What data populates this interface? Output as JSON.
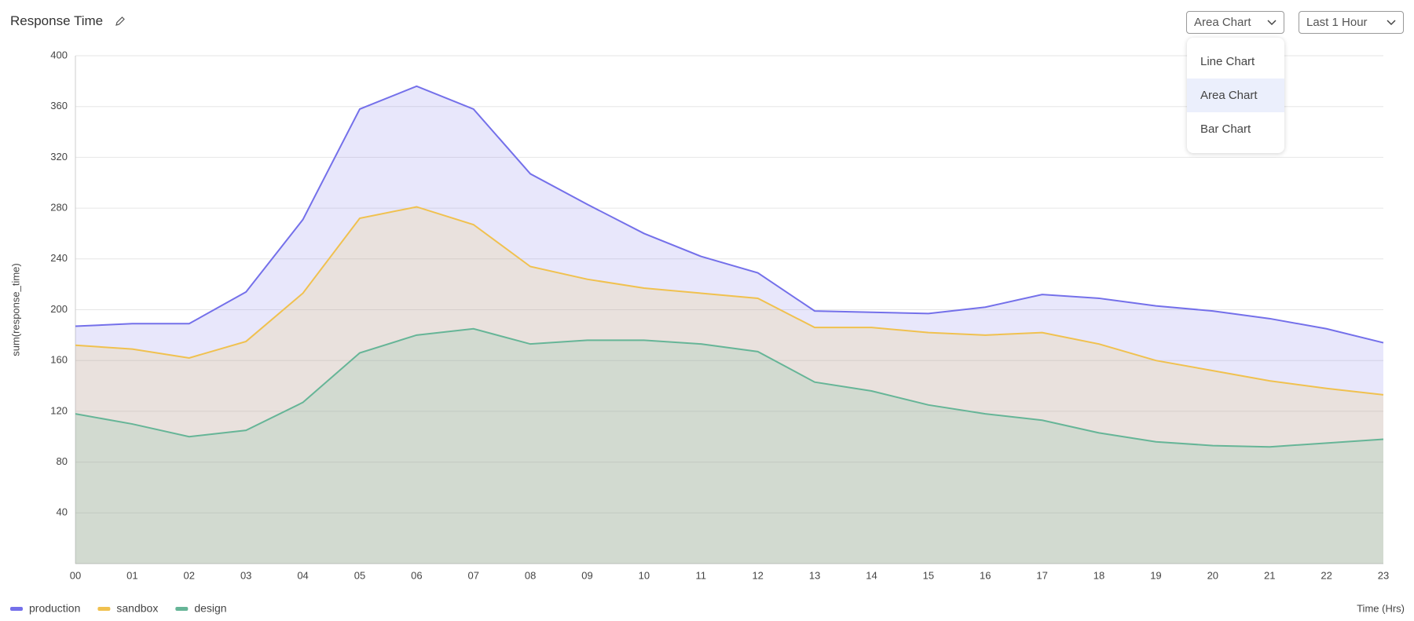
{
  "header": {
    "title": "Response Time"
  },
  "controls": {
    "chart_type": "Area Chart",
    "chart_type_options": [
      "Line Chart",
      "Area Chart",
      "Bar Chart"
    ],
    "time_range": "Last 1 Hour"
  },
  "chart_data": {
    "type": "area",
    "y_label": "sum(response_time)",
    "x_label": "Time (Hrs)",
    "categories": [
      "00",
      "01",
      "02",
      "03",
      "04",
      "05",
      "06",
      "07",
      "08",
      "09",
      "10",
      "11",
      "12",
      "13",
      "14",
      "15",
      "16",
      "17",
      "18",
      "19",
      "20",
      "21",
      "22",
      "23"
    ],
    "series": [
      {
        "name": "production",
        "color": "#7470ea",
        "values": [
          187,
          189,
          189,
          214,
          271,
          358,
          376,
          358,
          307,
          283,
          260,
          242,
          229,
          199,
          198,
          197,
          202,
          212,
          209,
          203,
          199,
          193,
          185,
          174
        ]
      },
      {
        "name": "sandbox",
        "color": "#f0c14f",
        "values": [
          172,
          169,
          162,
          175,
          213,
          272,
          281,
          267,
          234,
          224,
          217,
          213,
          209,
          186,
          186,
          182,
          180,
          182,
          173,
          160,
          152,
          144,
          138,
          133
        ]
      },
      {
        "name": "design",
        "color": "#66b597",
        "values": [
          118,
          110,
          100,
          105,
          127,
          166,
          180,
          185,
          173,
          176,
          176,
          173,
          167,
          143,
          136,
          125,
          118,
          113,
          103,
          96,
          93,
          92,
          95,
          98
        ]
      }
    ],
    "ylim": [
      0,
      400
    ],
    "yticks": [
      40,
      80,
      120,
      160,
      200,
      240,
      280,
      320,
      360,
      400
    ],
    "grid": true,
    "legend": "bottom-left"
  }
}
